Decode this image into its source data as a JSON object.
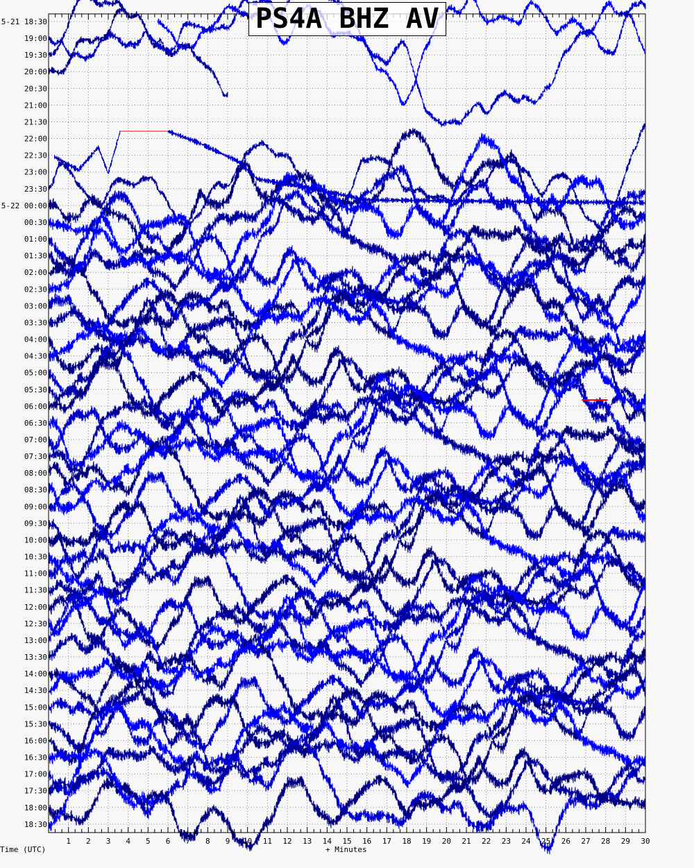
{
  "chart_data": {
    "type": "line",
    "title": "PS4A BHZ AV",
    "xlabel": "+ Minutes",
    "ylabel": "Time (UTC)",
    "xlim": [
      0,
      30
    ],
    "x_ticks": [
      "1",
      "2",
      "3",
      "4",
      "5",
      "6",
      "7",
      "8",
      "9",
      "10",
      "11",
      "12",
      "13",
      "14",
      "15",
      "16",
      "17",
      "18",
      "19",
      "20",
      "21",
      "22",
      "23",
      "24",
      "25",
      "26",
      "27",
      "28",
      "29",
      "30"
    ],
    "y_ticks": [
      "5-21 18:30",
      "19:00",
      "19:30",
      "20:00",
      "20:30",
      "21:00",
      "21:30",
      "22:00",
      "22:30",
      "23:00",
      "23:30",
      "5-22 00:00",
      "00:30",
      "01:00",
      "01:30",
      "02:00",
      "02:30",
      "03:00",
      "03:30",
      "04:00",
      "04:30",
      "05:00",
      "05:30",
      "06:00",
      "06:30",
      "07:00",
      "07:30",
      "08:00",
      "08:30",
      "09:00",
      "09:30",
      "10:00",
      "10:30",
      "11:00",
      "11:30",
      "12:00",
      "12:30",
      "13:00",
      "13:30",
      "14:00",
      "14:30",
      "15:00",
      "15:30",
      "16:00",
      "16:30",
      "17:00",
      "17:30",
      "18:00",
      "18:30"
    ],
    "trace_colors": [
      "#0000ff",
      "#0000cc",
      "#00009e",
      "#000080"
    ],
    "clip_color": "#ff0000",
    "grid": true,
    "row_coverage_minutes": {
      "18:30 (5-21)": [
        5.5,
        30
      ],
      "19:00": [
        0,
        30
      ],
      "19:30": [
        0,
        9
      ],
      "20:00": [
        0,
        3.8
      ],
      "20:30": null,
      "21:00": null,
      "21:30": null,
      "18:30 (5-22)": [
        0,
        5.3
      ]
    }
  }
}
